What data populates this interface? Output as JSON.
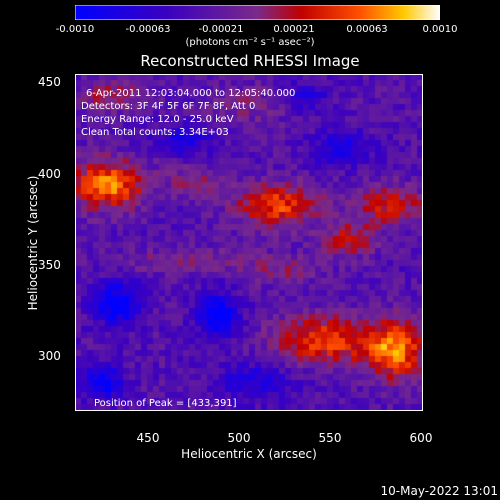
{
  "colorbar": {
    "ticks": [
      "-0.0010",
      "-0.00063",
      "-0.00021",
      "0.00021",
      "0.00063",
      "0.0010"
    ],
    "units": "(photons cm⁻² s⁻¹ asec⁻²)",
    "range": [
      -0.001,
      0.001
    ]
  },
  "title": "Reconstructed RHESSI Image",
  "annotations": {
    "time": "6-Apr-2011 12:03:04.000 to 12:05:40.000",
    "detectors": "Detectors: 3F 4F 5F 6F 7F 8F, Att 0",
    "energy": "Energy Range: 12.0 - 25.0 keV",
    "clean": "Clean     Total counts: 3.34E+03",
    "peak": "Position of Peak = [433,391]"
  },
  "timestamp": "10-May-2022 13:01",
  "chart_data": {
    "type": "heatmap",
    "xlabel": "Heliocentric X (arcsec)",
    "ylabel": "Heliocentric Y (arcsec)",
    "xlim": [
      410,
      600
    ],
    "ylim": [
      263,
      458
    ],
    "x_ticks": [
      "450",
      "500",
      "550",
      "600"
    ],
    "y_ticks": [
      "300",
      "350",
      "400",
      "450"
    ],
    "color_range": [
      -0.001,
      0.001
    ],
    "peak": [
      433,
      391
    ],
    "sources": [
      {
        "x": 428,
        "y": 394,
        "amp": 0.00095,
        "sx": 14,
        "sy": 10
      },
      {
        "x": 475,
        "y": 396,
        "amp": 0.00035,
        "sx": 10,
        "sy": 6
      },
      {
        "x": 520,
        "y": 382,
        "amp": 0.00075,
        "sx": 16,
        "sy": 9
      },
      {
        "x": 560,
        "y": 362,
        "amp": 0.00055,
        "sx": 10,
        "sy": 7
      },
      {
        "x": 582,
        "y": 382,
        "amp": 0.0006,
        "sx": 14,
        "sy": 8
      },
      {
        "x": 546,
        "y": 304,
        "amp": 0.00075,
        "sx": 20,
        "sy": 10
      },
      {
        "x": 585,
        "y": 298,
        "amp": 0.0009,
        "sx": 12,
        "sy": 12
      },
      {
        "x": 430,
        "y": 445,
        "amp": 0.00045,
        "sx": 12,
        "sy": 6
      },
      {
        "x": 470,
        "y": 350,
        "amp": 0.0003,
        "sx": 25,
        "sy": 5
      },
      {
        "x": 505,
        "y": 440,
        "amp": 0.00025,
        "sx": 18,
        "sy": 8
      },
      {
        "x": 522,
        "y": 345,
        "amp": 0.0003,
        "sx": 15,
        "sy": 6
      }
    ],
    "negatives": [
      {
        "x": 433,
        "y": 325,
        "amp": -0.00075,
        "sx": 9,
        "sy": 9
      },
      {
        "x": 488,
        "y": 318,
        "amp": -0.0008,
        "sx": 8,
        "sy": 9
      },
      {
        "x": 425,
        "y": 280,
        "amp": -0.0007,
        "sx": 8,
        "sy": 7
      },
      {
        "x": 470,
        "y": 420,
        "amp": -0.0005,
        "sx": 10,
        "sy": 6
      },
      {
        "x": 555,
        "y": 415,
        "amp": -0.00045,
        "sx": 12,
        "sy": 7
      },
      {
        "x": 508,
        "y": 280,
        "amp": -0.00045,
        "sx": 15,
        "sy": 8
      },
      {
        "x": 535,
        "y": 445,
        "amp": -0.0004,
        "sx": 10,
        "sy": 6
      }
    ],
    "background": -0.0003
  }
}
